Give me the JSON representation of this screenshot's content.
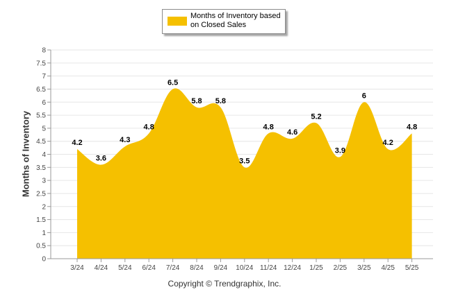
{
  "chart_data": {
    "type": "area",
    "title": "",
    "xlabel": "",
    "ylabel": "Months of Inventory",
    "categories": [
      "3/24",
      "4/24",
      "5/24",
      "6/24",
      "7/24",
      "8/24",
      "9/24",
      "10/24",
      "11/24",
      "12/24",
      "1/25",
      "2/25",
      "3/25",
      "4/25",
      "5/25"
    ],
    "series": [
      {
        "name": "Months of Inventory based on Closed Sales",
        "values": [
          4.2,
          3.6,
          4.3,
          4.8,
          6.5,
          5.8,
          5.8,
          3.5,
          4.8,
          4.6,
          5.2,
          3.9,
          6,
          4.2,
          4.8
        ],
        "color": "#F5C000"
      }
    ],
    "ylim": [
      0,
      8
    ],
    "yticks": [
      "0",
      "0.5",
      "1",
      "1.5",
      "2",
      "2.5",
      "3",
      "3.5",
      "4",
      "4.5",
      "5",
      "5.5",
      "6",
      "6.5",
      "7",
      "7.5",
      "8"
    ],
    "grid": true,
    "legend_position": "top-center"
  },
  "footer": {
    "copyright": "Copyright © Trendgraphix, Inc."
  }
}
